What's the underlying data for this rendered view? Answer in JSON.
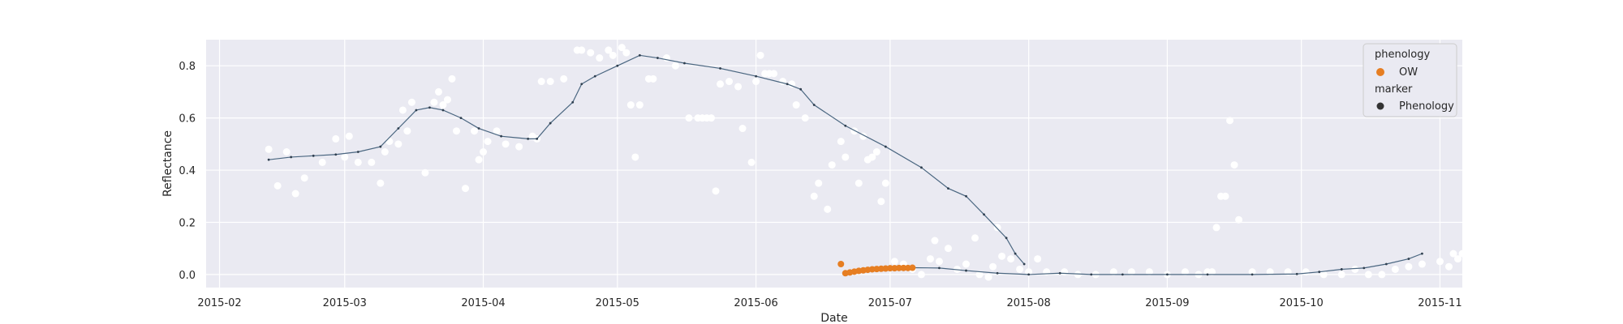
{
  "chart_data": {
    "type": "scatter",
    "xlabel": "Date",
    "ylabel": "Reflectance",
    "x_type": "date",
    "xlim": [
      "2015-01-29",
      "2015-11-06"
    ],
    "ylim": [
      -0.05,
      0.9
    ],
    "x_ticks": [
      "2015-02-01",
      "2015-03-01",
      "2015-04-01",
      "2015-05-01",
      "2015-06-01",
      "2015-07-01",
      "2015-08-01",
      "2015-09-01",
      "2015-10-01",
      "2015-11-01"
    ],
    "x_tick_labels": [
      "2015-02",
      "2015-03",
      "2015-04",
      "2015-05",
      "2015-06",
      "2015-07",
      "2015-08",
      "2015-09",
      "2015-10",
      "2015-11"
    ],
    "y_ticks": [
      0.0,
      0.2,
      0.4,
      0.6,
      0.8
    ],
    "y_tick_labels": [
      "0.0",
      "0.2",
      "0.4",
      "0.6",
      "0.8"
    ],
    "grid": true,
    "background": "#eaeaf2",
    "legend": {
      "position": "top-right",
      "hue_title": "phenology",
      "hue_entries": [
        {
          "label": "OW",
          "color": "#e67e22"
        }
      ],
      "style_title": "marker",
      "style_entries": [
        {
          "label": "Phenology",
          "color": "#333333"
        }
      ]
    },
    "colors": {
      "raw_points": "#ffffff",
      "smooth_line": "#4a6680",
      "phenology": "#e67e22"
    },
    "series": [
      {
        "role": "raw observations",
        "style": "white dots",
        "points": [
          [
            "2015-02-12",
            0.48
          ],
          [
            "2015-02-14",
            0.34
          ],
          [
            "2015-02-16",
            0.47
          ],
          [
            "2015-02-18",
            0.31
          ],
          [
            "2015-02-20",
            0.37
          ],
          [
            "2015-02-24",
            0.43
          ],
          [
            "2015-02-27",
            0.52
          ],
          [
            "2015-03-01",
            0.45
          ],
          [
            "2015-03-02",
            0.53
          ],
          [
            "2015-03-04",
            0.43
          ],
          [
            "2015-03-07",
            0.43
          ],
          [
            "2015-03-09",
            0.35
          ],
          [
            "2015-03-10",
            0.47
          ],
          [
            "2015-03-11",
            0.51
          ],
          [
            "2015-03-13",
            0.5
          ],
          [
            "2015-03-14",
            0.63
          ],
          [
            "2015-03-15",
            0.55
          ],
          [
            "2015-03-16",
            0.66
          ],
          [
            "2015-03-19",
            0.39
          ],
          [
            "2015-03-21",
            0.66
          ],
          [
            "2015-03-22",
            0.7
          ],
          [
            "2015-03-23",
            0.65
          ],
          [
            "2015-03-24",
            0.67
          ],
          [
            "2015-03-25",
            0.75
          ],
          [
            "2015-03-26",
            0.55
          ],
          [
            "2015-03-28",
            0.33
          ],
          [
            "2015-03-30",
            0.55
          ],
          [
            "2015-03-31",
            0.44
          ],
          [
            "2015-04-01",
            0.47
          ],
          [
            "2015-04-02",
            0.51
          ],
          [
            "2015-04-04",
            0.55
          ],
          [
            "2015-04-06",
            0.5
          ],
          [
            "2015-04-09",
            0.49
          ],
          [
            "2015-04-12",
            0.53
          ],
          [
            "2015-04-13",
            0.52
          ],
          [
            "2015-04-14",
            0.74
          ],
          [
            "2015-04-16",
            0.74
          ],
          [
            "2015-04-19",
            0.75
          ],
          [
            "2015-04-22",
            0.86
          ],
          [
            "2015-04-23",
            0.86
          ],
          [
            "2015-04-25",
            0.85
          ],
          [
            "2015-04-27",
            0.83
          ],
          [
            "2015-04-29",
            0.86
          ],
          [
            "2015-04-30",
            0.84
          ],
          [
            "2015-05-02",
            0.87
          ],
          [
            "2015-05-03",
            0.85
          ],
          [
            "2015-05-04",
            0.65
          ],
          [
            "2015-05-05",
            0.45
          ],
          [
            "2015-05-06",
            0.65
          ],
          [
            "2015-05-08",
            0.75
          ],
          [
            "2015-05-09",
            0.75
          ],
          [
            "2015-05-12",
            0.83
          ],
          [
            "2015-05-14",
            0.8
          ],
          [
            "2015-05-17",
            0.6
          ],
          [
            "2015-05-19",
            0.6
          ],
          [
            "2015-05-20",
            0.6
          ],
          [
            "2015-05-21",
            0.6
          ],
          [
            "2015-05-22",
            0.6
          ],
          [
            "2015-05-23",
            0.32
          ],
          [
            "2015-05-24",
            0.73
          ],
          [
            "2015-05-26",
            0.74
          ],
          [
            "2015-05-28",
            0.72
          ],
          [
            "2015-05-29",
            0.56
          ],
          [
            "2015-05-31",
            0.43
          ],
          [
            "2015-06-01",
            0.74
          ],
          [
            "2015-06-02",
            0.84
          ],
          [
            "2015-06-03",
            0.77
          ],
          [
            "2015-06-04",
            0.77
          ],
          [
            "2015-06-05",
            0.77
          ],
          [
            "2015-06-07",
            0.74
          ],
          [
            "2015-06-09",
            0.73
          ],
          [
            "2015-06-10",
            0.65
          ],
          [
            "2015-06-12",
            0.6
          ],
          [
            "2015-06-14",
            0.3
          ],
          [
            "2015-06-15",
            0.35
          ],
          [
            "2015-06-17",
            0.25
          ],
          [
            "2015-06-18",
            0.42
          ],
          [
            "2015-06-20",
            0.51
          ],
          [
            "2015-06-21",
            0.45
          ],
          [
            "2015-06-23",
            0.55
          ],
          [
            "2015-06-24",
            0.35
          ],
          [
            "2015-06-25",
            0.53
          ],
          [
            "2015-06-26",
            0.44
          ],
          [
            "2015-06-27",
            0.45
          ],
          [
            "2015-06-28",
            0.47
          ],
          [
            "2015-06-29",
            0.28
          ],
          [
            "2015-06-30",
            0.35
          ],
          [
            "2015-07-02",
            0.05
          ],
          [
            "2015-07-04",
            0.04
          ],
          [
            "2015-07-06",
            0.02
          ],
          [
            "2015-07-08",
            0.0
          ],
          [
            "2015-07-10",
            0.06
          ],
          [
            "2015-07-11",
            0.13
          ],
          [
            "2015-07-12",
            0.05
          ],
          [
            "2015-07-14",
            0.1
          ],
          [
            "2015-07-16",
            0.02
          ],
          [
            "2015-07-18",
            0.04
          ],
          [
            "2015-07-20",
            0.14
          ],
          [
            "2015-07-21",
            0.0
          ],
          [
            "2015-07-23",
            -0.01
          ],
          [
            "2015-07-24",
            0.03
          ],
          [
            "2015-07-25",
            0.18
          ],
          [
            "2015-07-26",
            0.07
          ],
          [
            "2015-07-28",
            0.06
          ],
          [
            "2015-07-30",
            0.02
          ],
          [
            "2015-08-01",
            0.01
          ],
          [
            "2015-08-03",
            0.06
          ],
          [
            "2015-08-05",
            0.01
          ],
          [
            "2015-08-09",
            0.01
          ],
          [
            "2015-08-12",
            0.0
          ],
          [
            "2015-08-16",
            0.0
          ],
          [
            "2015-08-20",
            0.01
          ],
          [
            "2015-08-24",
            0.01
          ],
          [
            "2015-08-28",
            0.01
          ],
          [
            "2015-09-01",
            0.0
          ],
          [
            "2015-09-05",
            0.01
          ],
          [
            "2015-09-08",
            0.0
          ],
          [
            "2015-09-10",
            0.01
          ],
          [
            "2015-09-11",
            0.01
          ],
          [
            "2015-09-12",
            0.18
          ],
          [
            "2015-09-13",
            0.3
          ],
          [
            "2015-09-14",
            0.3
          ],
          [
            "2015-09-15",
            0.59
          ],
          [
            "2015-09-16",
            0.42
          ],
          [
            "2015-09-17",
            0.21
          ],
          [
            "2015-09-20",
            0.01
          ],
          [
            "2015-09-24",
            0.01
          ],
          [
            "2015-09-28",
            0.01
          ],
          [
            "2015-10-02",
            0.01
          ],
          [
            "2015-10-06",
            0.0
          ],
          [
            "2015-10-10",
            0.0
          ],
          [
            "2015-10-13",
            0.02
          ],
          [
            "2015-10-16",
            0.0
          ],
          [
            "2015-10-19",
            0.0
          ],
          [
            "2015-10-22",
            0.02
          ],
          [
            "2015-10-25",
            0.03
          ],
          [
            "2015-10-28",
            0.04
          ],
          [
            "2015-11-01",
            0.05
          ],
          [
            "2015-11-03",
            0.03
          ],
          [
            "2015-11-04",
            0.08
          ],
          [
            "2015-11-05",
            0.06
          ],
          [
            "2015-11-06",
            0.08
          ]
        ]
      },
      {
        "role": "smoothed curve",
        "style": "dark line with small dots",
        "points": [
          [
            "2015-02-12",
            0.44
          ],
          [
            "2015-02-17",
            0.45
          ],
          [
            "2015-02-22",
            0.455
          ],
          [
            "2015-02-27",
            0.46
          ],
          [
            "2015-03-04",
            0.47
          ],
          [
            "2015-03-09",
            0.49
          ],
          [
            "2015-03-13",
            0.56
          ],
          [
            "2015-03-17",
            0.63
          ],
          [
            "2015-03-20",
            0.64
          ],
          [
            "2015-03-23",
            0.63
          ],
          [
            "2015-03-27",
            0.6
          ],
          [
            "2015-03-31",
            0.56
          ],
          [
            "2015-04-05",
            0.53
          ],
          [
            "2015-04-11",
            0.52
          ],
          [
            "2015-04-13",
            0.52
          ],
          [
            "2015-04-16",
            0.58
          ],
          [
            "2015-04-21",
            0.66
          ],
          [
            "2015-04-23",
            0.73
          ],
          [
            "2015-04-26",
            0.76
          ],
          [
            "2015-05-01",
            0.8
          ],
          [
            "2015-05-06",
            0.84
          ],
          [
            "2015-05-10",
            0.83
          ],
          [
            "2015-05-16",
            0.81
          ],
          [
            "2015-05-24",
            0.79
          ],
          [
            "2015-06-01",
            0.76
          ],
          [
            "2015-06-08",
            0.73
          ],
          [
            "2015-06-11",
            0.71
          ],
          [
            "2015-06-14",
            0.65
          ],
          [
            "2015-06-21",
            0.57
          ],
          [
            "2015-06-30",
            0.49
          ],
          [
            "2015-07-08",
            0.41
          ],
          [
            "2015-07-14",
            0.33
          ],
          [
            "2015-07-18",
            0.3
          ],
          [
            "2015-07-22",
            0.23
          ],
          [
            "2015-07-27",
            0.14
          ],
          [
            "2015-07-29",
            0.08
          ],
          [
            "2015-07-31",
            0.04
          ]
        ]
      },
      {
        "name": "OW",
        "role": "phenology",
        "style": "orange dots",
        "points": [
          [
            "2015-06-20",
            0.04
          ],
          [
            "2015-06-21",
            0.005
          ],
          [
            "2015-06-22",
            0.008
          ],
          [
            "2015-06-23",
            0.011
          ],
          [
            "2015-06-24",
            0.014
          ],
          [
            "2015-06-25",
            0.016
          ],
          [
            "2015-06-26",
            0.018
          ],
          [
            "2015-06-27",
            0.02
          ],
          [
            "2015-06-28",
            0.021
          ],
          [
            "2015-06-29",
            0.022
          ],
          [
            "2015-06-30",
            0.023
          ],
          [
            "2015-07-01",
            0.024
          ],
          [
            "2015-07-02",
            0.024
          ],
          [
            "2015-07-03",
            0.025
          ],
          [
            "2015-07-04",
            0.025
          ],
          [
            "2015-07-05",
            0.025
          ],
          [
            "2015-07-06",
            0.026
          ]
        ]
      },
      {
        "role": "smoothed curve",
        "style": "dark line with small dots",
        "points": [
          [
            "2015-07-06",
            0.026
          ],
          [
            "2015-07-12",
            0.025
          ],
          [
            "2015-07-18",
            0.015
          ],
          [
            "2015-07-25",
            0.005
          ],
          [
            "2015-08-01",
            0.0
          ],
          [
            "2015-08-08",
            0.005
          ],
          [
            "2015-08-15",
            0.0
          ],
          [
            "2015-08-22",
            0.0
          ],
          [
            "2015-09-01",
            0.0
          ],
          [
            "2015-09-10",
            0.0
          ],
          [
            "2015-09-20",
            0.0
          ],
          [
            "2015-09-30",
            0.002
          ],
          [
            "2015-10-05",
            0.01
          ],
          [
            "2015-10-10",
            0.02
          ],
          [
            "2015-10-15",
            0.025
          ],
          [
            "2015-10-20",
            0.04
          ],
          [
            "2015-10-25",
            0.06
          ],
          [
            "2015-10-28",
            0.08
          ]
        ]
      }
    ]
  }
}
